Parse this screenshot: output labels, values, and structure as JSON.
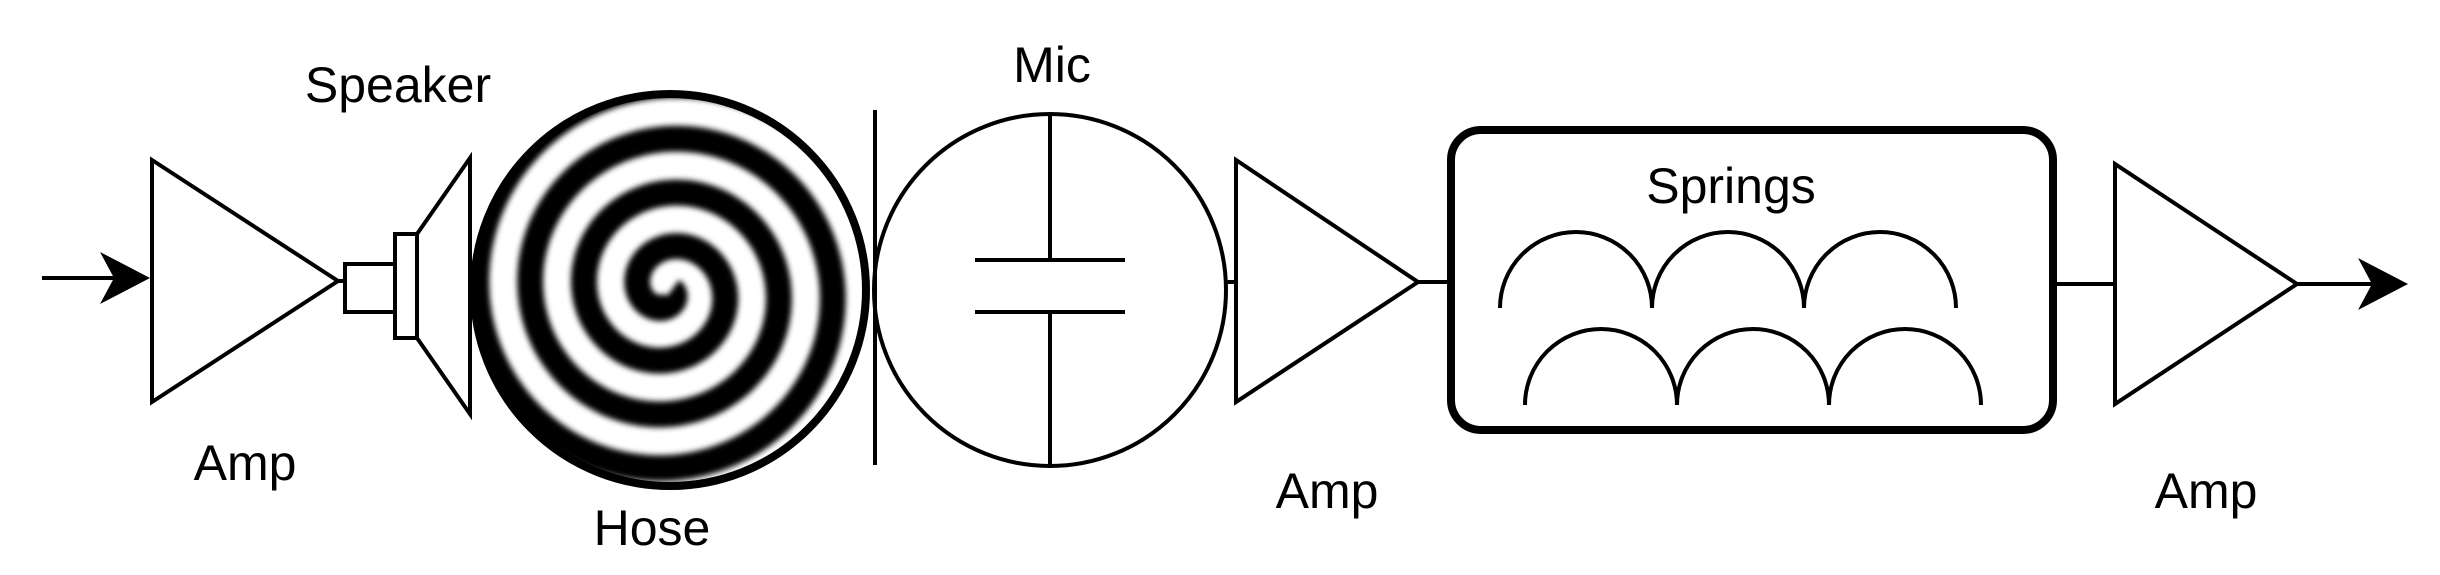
{
  "labels": {
    "speaker": "Speaker",
    "hose": "Hose",
    "mic": "Mic",
    "springs": "Springs",
    "amp_1": "Amp",
    "amp_2": "Amp",
    "amp_3": "Amp"
  },
  "colors": {
    "stroke": "#000000",
    "background": "#ffffff"
  },
  "icons": {
    "input_arrow": "arrow-right-icon",
    "output_arrow": "arrow-right-icon",
    "hose_graphic": "spiral-icon",
    "mic_graphic": "capacitor-icon",
    "springs_graphic": "spring-coil-icon"
  }
}
